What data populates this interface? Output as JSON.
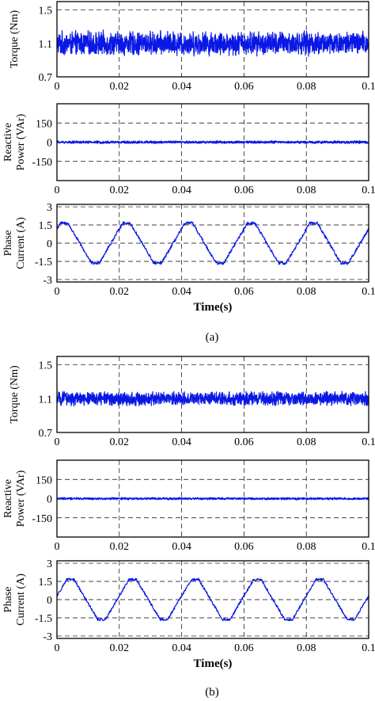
{
  "captions": [
    "(a)",
    "(b)"
  ],
  "chart_data": [
    {
      "type": "line",
      "panel": "(a)",
      "ylabel": "Torque (Nm)",
      "xlim": [
        0,
        0.1
      ],
      "xticks": [
        "0",
        "0.02",
        "0.04",
        "0.06",
        "0.08",
        "0.1"
      ],
      "ylim": [
        0.7,
        1.6
      ],
      "yticks": [
        {
          "v": 1.5,
          "t": "1.5"
        },
        {
          "v": 1.1,
          "t": "1.1"
        },
        {
          "v": 0.7,
          "t": "0.7"
        }
      ],
      "signal": {
        "kind": "noise",
        "mean": 1.1,
        "amplitude": 0.16
      },
      "color": "#0a18e6"
    },
    {
      "type": "line",
      "panel": "(a)",
      "ylabel": "Reactive Power (VAr)",
      "ylabel_lines": [
        "Reactive",
        "Power (VAr)"
      ],
      "xlim": [
        0,
        0.1
      ],
      "xticks": [
        "0",
        "0.02",
        "0.04",
        "0.06",
        "0.08",
        "0.1"
      ],
      "ylim": [
        -300,
        300
      ],
      "yticks": [
        {
          "v": 150,
          "t": "150"
        },
        {
          "v": 0,
          "t": "0"
        },
        {
          "v": -150,
          "t": "-150"
        }
      ],
      "signal": {
        "kind": "noise",
        "mean": 0,
        "amplitude": 12
      },
      "color": "#0a18e6"
    },
    {
      "type": "line",
      "panel": "(a)",
      "ylabel": "Phase Current (A)",
      "ylabel_lines": [
        "Phase",
        "Current (A)"
      ],
      "xlabel": "Time(s)",
      "xlim": [
        0,
        0.1
      ],
      "xticks": [
        "0",
        "0.02",
        "0.04",
        "0.06",
        "0.08",
        "0.1"
      ],
      "ylim": [
        -3.2,
        3.2
      ],
      "yticks": [
        {
          "v": 3,
          "t": "3"
        },
        {
          "v": 1.5,
          "t": "1.5"
        },
        {
          "v": 0,
          "t": "0"
        },
        {
          "v": -1.5,
          "t": "-1.5"
        },
        {
          "v": -3,
          "t": "-3"
        }
      ],
      "signal": {
        "kind": "trapezoid",
        "period": 0.02,
        "amplitude": 1.65,
        "phase": -0.0065,
        "noise": 0.12
      },
      "color": "#0a18e6"
    },
    {
      "type": "line",
      "panel": "(b)",
      "ylabel": "Torque (Nm)",
      "xlim": [
        0,
        0.1
      ],
      "xticks": [
        "0",
        "0.02",
        "0.04",
        "0.06",
        "0.08",
        "0.1"
      ],
      "ylim": [
        0.7,
        1.6
      ],
      "yticks": [
        {
          "v": 1.5,
          "t": "1.5"
        },
        {
          "v": 1.1,
          "t": "1.1"
        },
        {
          "v": 0.7,
          "t": "0.7"
        }
      ],
      "signal": {
        "kind": "noise",
        "mean": 1.1,
        "amplitude": 0.09
      },
      "color": "#0a18e6"
    },
    {
      "type": "line",
      "panel": "(b)",
      "ylabel": "Reactive Power (VAr)",
      "ylabel_lines": [
        "Reactive",
        "Power (VAr)"
      ],
      "xlim": [
        0,
        0.1
      ],
      "xticks": [
        "0",
        "0.02",
        "0.04",
        "0.06",
        "0.08",
        "0.1"
      ],
      "ylim": [
        -300,
        300
      ],
      "yticks": [
        {
          "v": 150,
          "t": "150"
        },
        {
          "v": 0,
          "t": "0"
        },
        {
          "v": -150,
          "t": "-150"
        }
      ],
      "signal": {
        "kind": "noise",
        "mean": 0,
        "amplitude": 10
      },
      "color": "#0a18e6"
    },
    {
      "type": "line",
      "panel": "(b)",
      "ylabel": "Phase Current (A)",
      "ylabel_lines": [
        "Phase",
        "Current (A)"
      ],
      "xlabel": "Time(s)",
      "xlim": [
        0,
        0.1
      ],
      "xticks": [
        "0",
        "0.02",
        "0.04",
        "0.06",
        "0.08",
        "0.1"
      ],
      "ylim": [
        -3.2,
        3.2
      ],
      "yticks": [
        {
          "v": 3,
          "t": "3"
        },
        {
          "v": 1.5,
          "t": "1.5"
        },
        {
          "v": 0,
          "t": "0"
        },
        {
          "v": -1.5,
          "t": "-1.5"
        },
        {
          "v": -3,
          "t": "-3"
        }
      ],
      "signal": {
        "kind": "trapezoid",
        "period": 0.02,
        "amplitude": 1.65,
        "phase": -0.0045,
        "noise": 0.1
      },
      "color": "#0a18e6"
    }
  ]
}
